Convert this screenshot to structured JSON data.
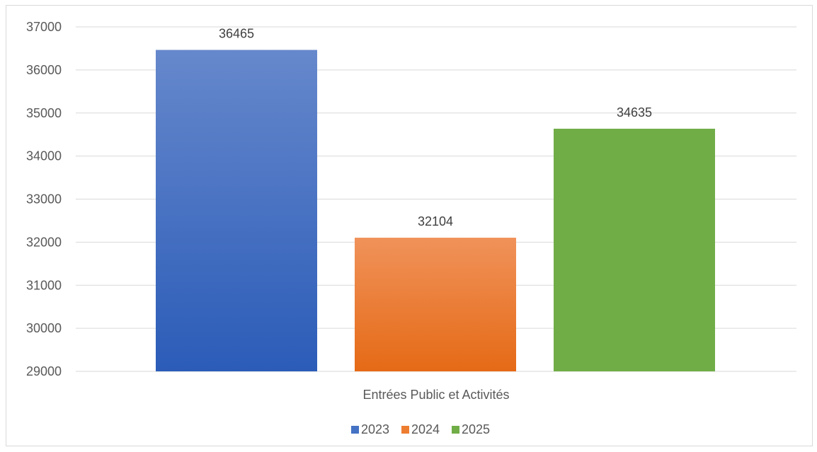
{
  "chart_data": {
    "type": "bar",
    "title": "",
    "xlabel": "",
    "ylabel": "",
    "categories": [
      "Entrées Public et Activités"
    ],
    "series": [
      {
        "name": "2023",
        "values": [
          36465
        ],
        "color": "#4472c4"
      },
      {
        "name": "2024",
        "values": [
          32104
        ],
        "color": "#ed7d31"
      },
      {
        "name": "2025",
        "values": [
          34635
        ],
        "color": "#70ad47"
      }
    ],
    "ylim": [
      29000,
      37000
    ],
    "yticks": [
      29000,
      30000,
      31000,
      32000,
      33000,
      34000,
      35000,
      36000,
      37000
    ],
    "grid": true,
    "data_labels": true,
    "legend_position": "bottom"
  }
}
